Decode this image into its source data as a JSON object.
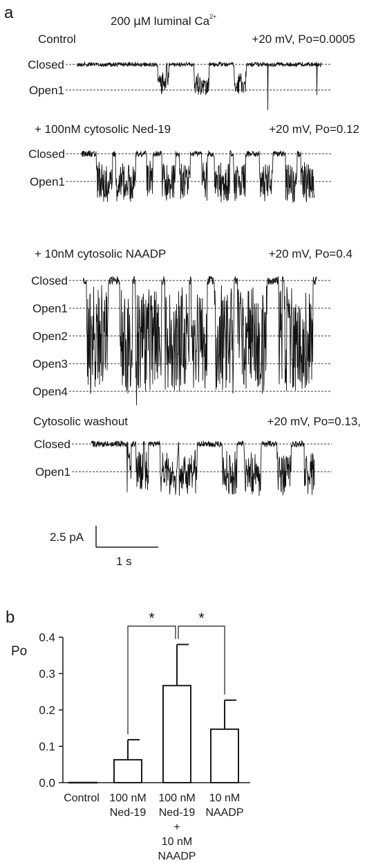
{
  "panel_a": {
    "letter": "a",
    "header": {
      "prefix": "200 ",
      "mu": "μ",
      "main": "M luminal Ca",
      "sup": "2+"
    },
    "traces": [
      {
        "condition": "Control",
        "voltage_po": "+20 mV, Po=0.0005",
        "levels": [
          "Closed",
          "Open1"
        ],
        "density": 0.003,
        "depth": 0.9,
        "spread": 0.7
      },
      {
        "condition": "+ 100nM cytosolic Ned-19",
        "voltage_po": "+20 mV, Po=0.12",
        "levels": [
          "Closed",
          "Open1"
        ],
        "density": 0.025,
        "depth": 1.4,
        "spread": 1.0
      },
      {
        "condition": "+ 10nM cytosolic NAADP",
        "voltage_po": "+20 mV, Po=0.4",
        "levels": [
          "Closed",
          "Open1",
          "Open2",
          "Open3",
          "Open4"
        ],
        "density": 0.06,
        "depth": 3.7,
        "spread": 1.4
      },
      {
        "condition": "Cytosolic washout",
        "voltage_po": "+20 mV, Po=0.13,",
        "levels": [
          "Closed",
          "Open1"
        ],
        "density": 0.025,
        "depth": 1.5,
        "spread": 1.0
      }
    ],
    "scale_bar": {
      "current": "2.5 pA",
      "time": "1 s"
    }
  },
  "panel_b": {
    "letter": "b",
    "significance": [
      "*",
      "*"
    ]
  },
  "chart_data": {
    "type": "bar",
    "ylabel": "Po",
    "xlabel": "",
    "ylim": [
      0,
      0.4
    ],
    "yticks": [
      "0.0",
      "0.1",
      "0.2",
      "0.3",
      "0.4"
    ],
    "categories": [
      "Control",
      "100 nM Ned-19",
      "100 nM Ned-19 + 10 nM NAADP",
      "10 nM NAADP"
    ],
    "category_label_lines": [
      [
        "Control"
      ],
      [
        "100 nM",
        "Ned-19"
      ],
      [
        "100 nM",
        "Ned-19",
        "+",
        "10 nM",
        "NAADP"
      ],
      [
        "10 nM",
        "NAADP"
      ]
    ],
    "values": [
      0.0005,
      0.063,
      0.267,
      0.147
    ],
    "errors": [
      0.0,
      0.055,
      0.113,
      0.08
    ],
    "significance_pairs": [
      [
        1,
        2
      ],
      [
        2,
        3
      ]
    ],
    "grid": false,
    "legend": "none"
  }
}
